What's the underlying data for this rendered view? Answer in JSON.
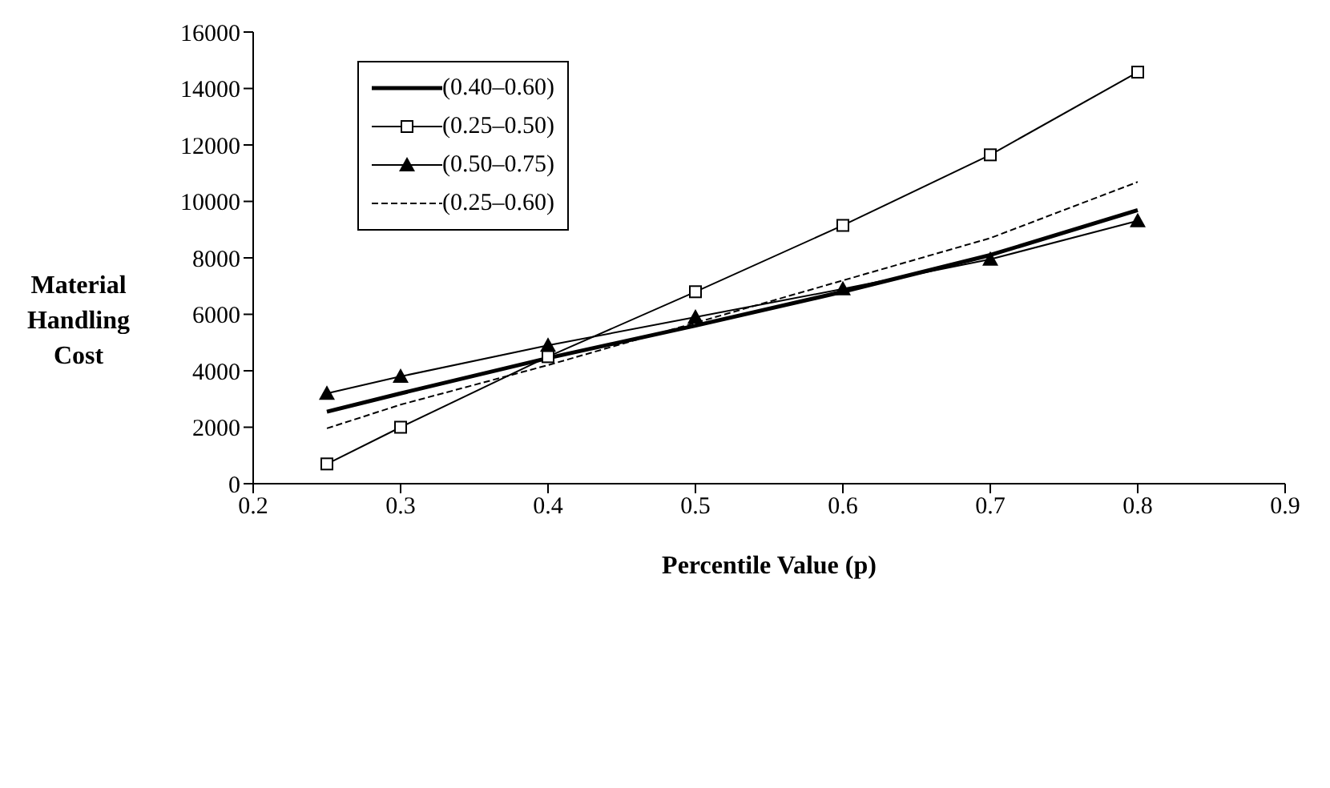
{
  "chart_data": {
    "type": "line",
    "xlabel": "Percentile Value (p)",
    "ylabel": "Material Handling Cost",
    "x": [
      0.25,
      0.3,
      0.4,
      0.5,
      0.6,
      0.7,
      0.8
    ],
    "xlim": [
      0.2,
      0.9
    ],
    "xticks": [
      0.2,
      0.3,
      0.4,
      0.5,
      0.6,
      0.7,
      0.8,
      0.9
    ],
    "ylim": [
      0,
      16000
    ],
    "yticks": [
      0,
      2000,
      4000,
      6000,
      8000,
      10000,
      12000,
      14000,
      16000
    ],
    "grid": false,
    "legend": "top left",
    "series": [
      {
        "name": "(0.40–0.60)",
        "color": "#000000",
        "marker": "none",
        "line_style": "solid",
        "values": [
          2550,
          3200,
          4450,
          5600,
          6800,
          8100,
          9690
        ]
      },
      {
        "name": "(0.25–0.50)",
        "color": "#000000",
        "marker": "square",
        "line_style": "solid",
        "values": [
          700,
          2000,
          4500,
          6800,
          9150,
          11650,
          14580
        ]
      },
      {
        "name": "(0.50–0.75)",
        "color": "#000000",
        "marker": "triangle",
        "line_style": "solid",
        "values": [
          3200,
          3800,
          4900,
          5900,
          6900,
          7950,
          9310
        ]
      },
      {
        "name": "(0.25–0.60)",
        "color": "#000000",
        "marker": "none",
        "line_style": "dashed",
        "values": [
          1960,
          2800,
          4200,
          5700,
          7200,
          8700,
          10690
        ]
      }
    ]
  }
}
